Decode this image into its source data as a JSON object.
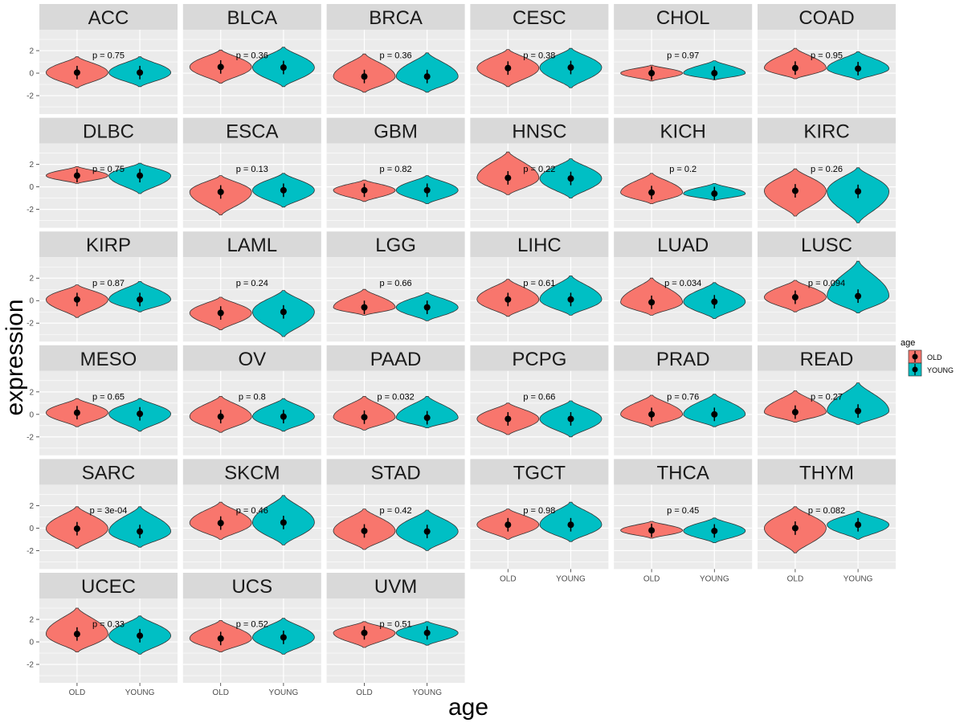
{
  "chart_data": {
    "type": "violin",
    "xlabel": "age",
    "ylabel": "expression",
    "categories": [
      "OLD",
      "YOUNG"
    ],
    "ylim": [
      -3.64,
      3.86
    ],
    "y_ticks": [
      2,
      0,
      -2
    ],
    "y_tick_labels": [
      "2",
      "0",
      "-2"
    ],
    "grid": true,
    "legend": {
      "title": "age",
      "position": "right",
      "entries": [
        "OLD",
        "YOUNG"
      ]
    },
    "colors": {
      "OLD": "#F8766D",
      "YOUNG": "#00BFC4"
    },
    "facets": [
      {
        "name": "ACC",
        "p": "p = 0.75",
        "old": {
          "min": -1.3,
          "max": 1.45,
          "mean": 0.05
        },
        "young": {
          "min": -1.2,
          "max": 1.45,
          "mean": 0.05
        }
      },
      {
        "name": "BLCA",
        "p": "p = 0.36",
        "old": {
          "min": -0.9,
          "max": 2.05,
          "mean": 0.55
        },
        "young": {
          "min": -1.2,
          "max": 2.3,
          "mean": 0.5
        }
      },
      {
        "name": "BRCA",
        "p": "p = 0.36",
        "old": {
          "min": -1.7,
          "max": 1.7,
          "mean": -0.3
        },
        "young": {
          "min": -1.7,
          "max": 1.8,
          "mean": -0.3
        }
      },
      {
        "name": "CESC",
        "p": "p = 0.38",
        "old": {
          "min": -1.2,
          "max": 2.1,
          "mean": 0.45
        },
        "young": {
          "min": -1.3,
          "max": 2.2,
          "mean": 0.5
        }
      },
      {
        "name": "CHOL",
        "p": "p = 0.97",
        "old": {
          "min": -0.7,
          "max": 0.7,
          "mean": 0.0
        },
        "young": {
          "min": -0.6,
          "max": 1.1,
          "mean": 0.0
        }
      },
      {
        "name": "COAD",
        "p": "p = 0.95",
        "old": {
          "min": -0.5,
          "max": 2.2,
          "mean": 0.45
        },
        "young": {
          "min": -0.6,
          "max": 1.9,
          "mean": 0.4
        }
      },
      {
        "name": "DLBC",
        "p": "p = 0.75",
        "old": {
          "min": 0.3,
          "max": 1.8,
          "mean": 1.0
        },
        "young": {
          "min": -0.6,
          "max": 2.1,
          "mean": 1.0
        }
      },
      {
        "name": "ESCA",
        "p": "p = 0.13",
        "old": {
          "min": -2.5,
          "max": 1.0,
          "mean": -0.45
        },
        "young": {
          "min": -1.8,
          "max": 1.2,
          "mean": -0.3
        }
      },
      {
        "name": "GBM",
        "p": "p = 0.82",
        "old": {
          "min": -1.3,
          "max": 0.6,
          "mean": -0.3
        },
        "young": {
          "min": -1.5,
          "max": 1.0,
          "mean": -0.3
        }
      },
      {
        "name": "HNSC",
        "p": "p = 0.22",
        "old": {
          "min": -0.7,
          "max": 3.1,
          "mean": 0.8
        },
        "young": {
          "min": -1.0,
          "max": 2.5,
          "mean": 0.75
        }
      },
      {
        "name": "KICH",
        "p": "p = 0.2",
        "old": {
          "min": -1.5,
          "max": 1.2,
          "mean": -0.5
        },
        "young": {
          "min": -1.2,
          "max": 0.3,
          "mean": -0.6
        }
      },
      {
        "name": "KIRC",
        "p": "p = 0.26",
        "old": {
          "min": -2.6,
          "max": 1.6,
          "mean": -0.35
        },
        "young": {
          "min": -3.2,
          "max": 1.7,
          "mean": -0.4
        }
      },
      {
        "name": "KIRP",
        "p": "p = 0.87",
        "old": {
          "min": -1.5,
          "max": 1.4,
          "mean": 0.1
        },
        "young": {
          "min": -1.0,
          "max": 1.7,
          "mean": 0.1
        }
      },
      {
        "name": "LAML",
        "p": "p = 0.24",
        "old": {
          "min": -2.6,
          "max": 0.3,
          "mean": -1.1
        },
        "young": {
          "min": -3.2,
          "max": 0.9,
          "mean": -1.0
        }
      },
      {
        "name": "LGG",
        "p": "p = 0.66",
        "old": {
          "min": -1.3,
          "max": 1.0,
          "mean": -0.6
        },
        "young": {
          "min": -1.8,
          "max": 0.7,
          "mean": -0.6
        }
      },
      {
        "name": "LIHC",
        "p": "p = 0.61",
        "old": {
          "min": -1.4,
          "max": 1.9,
          "mean": 0.1
        },
        "young": {
          "min": -1.3,
          "max": 2.2,
          "mean": 0.1
        }
      },
      {
        "name": "LUAD",
        "p": "p = 0.034",
        "old": {
          "min": -1.3,
          "max": 2.0,
          "mean": -0.15
        },
        "young": {
          "min": -1.6,
          "max": 1.6,
          "mean": -0.1
        }
      },
      {
        "name": "LUSC",
        "p": "p = 0.094",
        "old": {
          "min": -1.0,
          "max": 1.8,
          "mean": 0.3
        },
        "young": {
          "min": -1.1,
          "max": 3.5,
          "mean": 0.4
        }
      },
      {
        "name": "MESO",
        "p": "p = 0.65",
        "old": {
          "min": -1.1,
          "max": 1.4,
          "mean": 0.15
        },
        "young": {
          "min": -1.5,
          "max": 1.4,
          "mean": 0.05
        }
      },
      {
        "name": "OV",
        "p": "p = 0.8",
        "old": {
          "min": -1.6,
          "max": 1.6,
          "mean": -0.2
        },
        "young": {
          "min": -1.5,
          "max": 1.4,
          "mean": -0.2
        }
      },
      {
        "name": "PAAD",
        "p": "p = 0.032",
        "old": {
          "min": -1.4,
          "max": 1.6,
          "mean": -0.25
        },
        "young": {
          "min": -1.2,
          "max": 1.6,
          "mean": -0.3
        }
      },
      {
        "name": "PCPG",
        "p": "p = 0.66",
        "old": {
          "min": -1.8,
          "max": 1.0,
          "mean": -0.4
        },
        "young": {
          "min": -2.0,
          "max": 1.2,
          "mean": -0.4
        }
      },
      {
        "name": "PRAD",
        "p": "p = 0.76",
        "old": {
          "min": -1.1,
          "max": 1.7,
          "mean": 0.0
        },
        "young": {
          "min": -1.1,
          "max": 1.8,
          "mean": 0.0
        }
      },
      {
        "name": "READ",
        "p": "p = 0.27",
        "old": {
          "min": -0.7,
          "max": 2.1,
          "mean": 0.2
        },
        "young": {
          "min": -0.9,
          "max": 2.8,
          "mean": 0.3
        }
      },
      {
        "name": "SARC",
        "p": "p = 3e-04",
        "old": {
          "min": -1.8,
          "max": 1.9,
          "mean": -0.05
        },
        "young": {
          "min": -1.7,
          "max": 1.9,
          "mean": -0.3
        }
      },
      {
        "name": "SKCM",
        "p": "p = 0.46",
        "old": {
          "min": -1.0,
          "max": 2.3,
          "mean": 0.45
        },
        "young": {
          "min": -1.5,
          "max": 2.9,
          "mean": 0.5
        }
      },
      {
        "name": "STAD",
        "p": "p = 0.42",
        "old": {
          "min": -1.9,
          "max": 1.7,
          "mean": -0.25
        },
        "young": {
          "min": -2.0,
          "max": 1.6,
          "mean": -0.3
        }
      },
      {
        "name": "TGCT",
        "p": "p = 0.98",
        "old": {
          "min": -1.0,
          "max": 1.7,
          "mean": 0.3
        },
        "young": {
          "min": -1.2,
          "max": 2.3,
          "mean": 0.3
        }
      },
      {
        "name": "THCA",
        "p": "p = 0.45",
        "old": {
          "min": -0.9,
          "max": 0.6,
          "mean": -0.2
        },
        "young": {
          "min": -1.3,
          "max": 0.9,
          "mean": -0.25
        }
      },
      {
        "name": "THYM",
        "p": "p = 0.082",
        "old": {
          "min": -2.2,
          "max": 1.9,
          "mean": 0.0
        },
        "young": {
          "min": -1.0,
          "max": 1.5,
          "mean": 0.3
        }
      },
      {
        "name": "UCEC",
        "p": "p = 0.33",
        "old": {
          "min": -0.9,
          "max": 3.0,
          "mean": 0.7
        },
        "young": {
          "min": -1.1,
          "max": 2.3,
          "mean": 0.55
        }
      },
      {
        "name": "UCS",
        "p": "p = 0.52",
        "old": {
          "min": -0.9,
          "max": 1.9,
          "mean": 0.3
        },
        "young": {
          "min": -1.1,
          "max": 2.1,
          "mean": 0.4
        }
      },
      {
        "name": "UVM",
        "p": "p = 0.51",
        "old": {
          "min": -0.5,
          "max": 1.8,
          "mean": 0.8
        },
        "young": {
          "min": -0.3,
          "max": 1.8,
          "mean": 0.8
        }
      }
    ]
  }
}
